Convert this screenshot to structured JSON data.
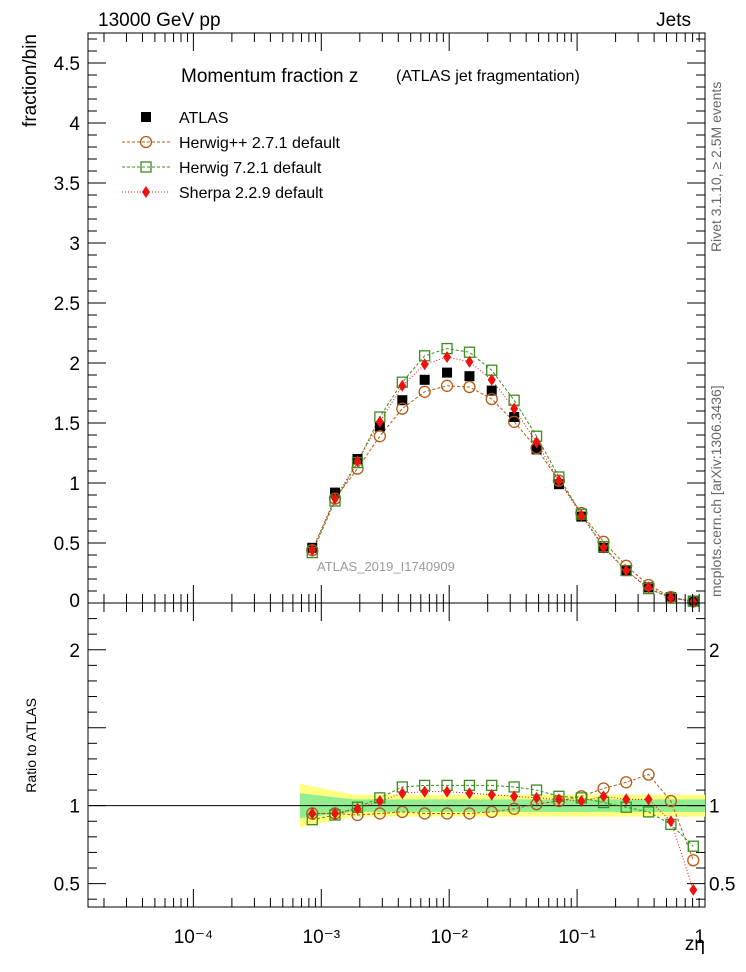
{
  "header": {
    "left": "13000 GeV pp",
    "right": "Jets"
  },
  "side_labels": {
    "rivet": "Rivet 3.1.10, ≥ 2.5M events",
    "source": "mcplots.cern.ch [arXiv:1306.3436]"
  },
  "chart_data": {
    "type": "scatter",
    "title": "Momentum fraction z",
    "subtitle": "(ATLAS jet fragmentation)",
    "analysis_tag": "ATLAS_2019_I1740909",
    "ylabel": "fraction/bin",
    "ratio_ylabel": "Ratio to ATLAS",
    "xlabel": "zη",
    "x_scale": "log",
    "xlim": [
      1.5e-05,
      1.0
    ],
    "ylim": [
      0,
      4.75
    ],
    "ratio_ylim": [
      0.35,
      2.3
    ],
    "x_ticks": [
      0.0001,
      0.001,
      0.01,
      0.1,
      1
    ],
    "x_tick_labels": [
      "10⁻⁴",
      "10⁻³",
      "10⁻²",
      "10⁻¹",
      "1"
    ],
    "y_ticks": [
      0.5,
      1,
      1.5,
      2,
      2.5,
      3,
      3.5,
      4,
      4.5
    ],
    "y_tick_labels": [
      "0.5",
      "1",
      "1.5",
      "2",
      "2.5",
      "3",
      "3.5",
      "4",
      "4.5"
    ],
    "y_zero_label": "0",
    "ratio_ticks": [
      0.5,
      1,
      2
    ],
    "ratio_tick_labels": [
      "0.5",
      "1",
      "2"
    ],
    "legend_position": "top-left",
    "x": [
      0.00085,
      0.00128,
      0.00192,
      0.00287,
      0.0043,
      0.00643,
      0.00962,
      0.0144,
      0.0215,
      0.0322,
      0.0482,
      0.0721,
      0.108,
      0.161,
      0.242,
      0.362,
      0.541,
      0.81
    ],
    "band_x": [
      0.00068,
      1.0
    ],
    "series": [
      {
        "name": "ATLAS",
        "marker": "filled-square",
        "color": "#000000",
        "values": [
          0.46,
          0.92,
          1.2,
          1.47,
          1.69,
          1.86,
          1.92,
          1.89,
          1.77,
          1.55,
          1.28,
          0.99,
          0.72,
          0.46,
          0.27,
          0.13,
          0.05,
          0.02
        ]
      },
      {
        "name": "Herwig++ 2.7.1 default",
        "marker": "open-circle",
        "color": "#b25a15",
        "values": [
          0.44,
          0.87,
          1.12,
          1.39,
          1.62,
          1.76,
          1.81,
          1.8,
          1.7,
          1.51,
          1.29,
          1.02,
          0.75,
          0.51,
          0.31,
          0.15,
          0.05,
          0.013
        ]
      },
      {
        "name": "Herwig 7.2.1 default",
        "marker": "open-square",
        "color": "#3c8c1e",
        "values": [
          0.42,
          0.85,
          1.17,
          1.55,
          1.84,
          2.06,
          2.12,
          2.09,
          1.94,
          1.69,
          1.39,
          1.05,
          0.74,
          0.47,
          0.27,
          0.12,
          0.04,
          0.015
        ]
      },
      {
        "name": "Sherpa 2.2.9 default",
        "marker": "filled-diamond",
        "color": "#ee1111",
        "values": [
          0.44,
          0.87,
          1.18,
          1.51,
          1.81,
          1.99,
          2.05,
          2.01,
          1.86,
          1.62,
          1.34,
          1.02,
          0.73,
          0.46,
          0.27,
          0.13,
          0.045,
          0.01
        ]
      }
    ],
    "ratio_series": [
      {
        "name": "Herwig++ 2.7.1 default",
        "values": [
          0.95,
          0.95,
          0.94,
          0.95,
          0.96,
          0.95,
          0.95,
          0.95,
          0.96,
          0.98,
          1.01,
          1.03,
          1.06,
          1.11,
          1.15,
          1.2,
          1.03,
          0.65
        ]
      },
      {
        "name": "Herwig 7.2.1 default",
        "values": [
          0.91,
          0.94,
          0.99,
          1.05,
          1.12,
          1.13,
          1.13,
          1.13,
          1.13,
          1.12,
          1.1,
          1.06,
          1.05,
          1.02,
          0.99,
          0.96,
          0.88,
          0.74
        ]
      },
      {
        "name": "Sherpa 2.2.9 default",
        "values": [
          0.95,
          0.95,
          0.98,
          1.03,
          1.08,
          1.09,
          1.09,
          1.08,
          1.07,
          1.06,
          1.05,
          1.04,
          1.03,
          1.06,
          1.04,
          1.04,
          0.9,
          0.46
        ]
      }
    ]
  }
}
